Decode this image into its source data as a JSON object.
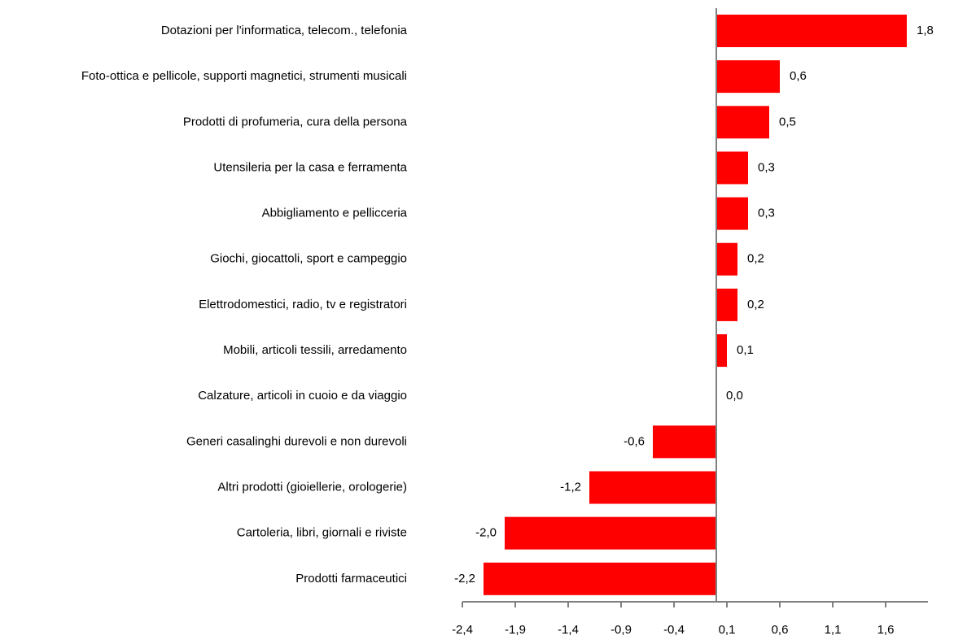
{
  "chart_data": {
    "type": "hbar",
    "categories": [
      "Dotazioni per l'informatica, telecom., telefonia",
      "Foto-ottica e pellicole, supporti magnetici, strumenti  musicali",
      "Prodotti di profumeria, cura della persona",
      "Utensileria per la casa e ferramenta",
      "Abbigliamento e pellicceria",
      "Giochi, giocattoli, sport e campeggio",
      "Elettrodomestici, radio, tv e registratori",
      "Mobili, articoli tessili, arredamento",
      "Calzature, articoli in cuoio e da viaggio",
      "Generi casalinghi durevoli e non durevoli",
      "Altri prodotti (gioiellerie, orologerie)",
      "Cartoleria, libri, giornali e riviste",
      "Prodotti farmaceutici"
    ],
    "values": [
      1.8,
      0.6,
      0.5,
      0.3,
      0.3,
      0.2,
      0.2,
      0.1,
      0.0,
      -0.6,
      -1.2,
      -2.0,
      -2.2
    ],
    "value_labels": [
      "1,8",
      "0,6",
      "0,5",
      "0,3",
      "0,3",
      "0,2",
      "0,2",
      "0,1",
      "0,0",
      "-0,6",
      "-1,2",
      "-2,0",
      "-2,2"
    ],
    "color": "#ff0000",
    "xlim": [
      -2.4,
      2.0
    ],
    "xticks": [
      {
        "value": -2.4,
        "label": "-2,4"
      },
      {
        "value": -1.9,
        "label": "-1,9"
      },
      {
        "value": -1.4,
        "label": "-1,4"
      },
      {
        "value": -0.9,
        "label": "-0,9"
      },
      {
        "value": -0.4,
        "label": "-0,4"
      },
      {
        "value": 0.1,
        "label": "0,1"
      },
      {
        "value": 0.6,
        "label": "0,6"
      },
      {
        "value": 1.1,
        "label": "1,1"
      },
      {
        "value": 1.6,
        "label": "1,6"
      }
    ],
    "grid": false
  }
}
